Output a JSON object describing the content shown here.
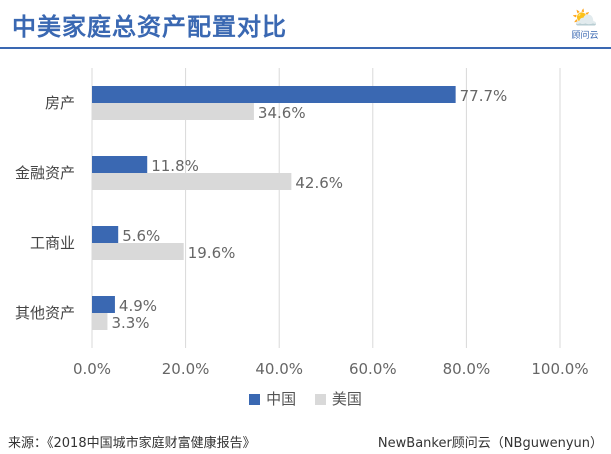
{
  "title": "中美家庭总资产配置对比",
  "logo": {
    "icon": "cloud-logo-icon",
    "text": "顾问云"
  },
  "colors": {
    "china": "#3a68b2",
    "usa": "#d9d9d9",
    "accent": "#3a68b2"
  },
  "chart_data": {
    "type": "bar",
    "orientation": "horizontal",
    "categories": [
      "房产",
      "金融资产",
      "工商业",
      "其他资产"
    ],
    "series": [
      {
        "name": "中国",
        "values": [
          77.7,
          11.8,
          5.6,
          4.9
        ],
        "labels": [
          "77.7%",
          "11.8%",
          "5.6%",
          "4.9%"
        ]
      },
      {
        "name": "美国",
        "values": [
          34.6,
          42.6,
          19.6,
          3.3
        ],
        "labels": [
          "34.6%",
          "42.6%",
          "19.6%",
          "3.3%"
        ]
      }
    ],
    "xlim": [
      0,
      100
    ],
    "xticks": [
      0,
      20,
      40,
      60,
      80,
      100
    ],
    "xtick_labels": [
      "0.0%",
      "20.0%",
      "40.0%",
      "60.0%",
      "80.0%",
      "100.0%"
    ],
    "grid": true,
    "legend_position": "bottom"
  },
  "footer": {
    "source": "来源：《2018中国城市家庭财富健康报告》",
    "credit": "NewBanker顾问云（NBguwenyun）"
  }
}
